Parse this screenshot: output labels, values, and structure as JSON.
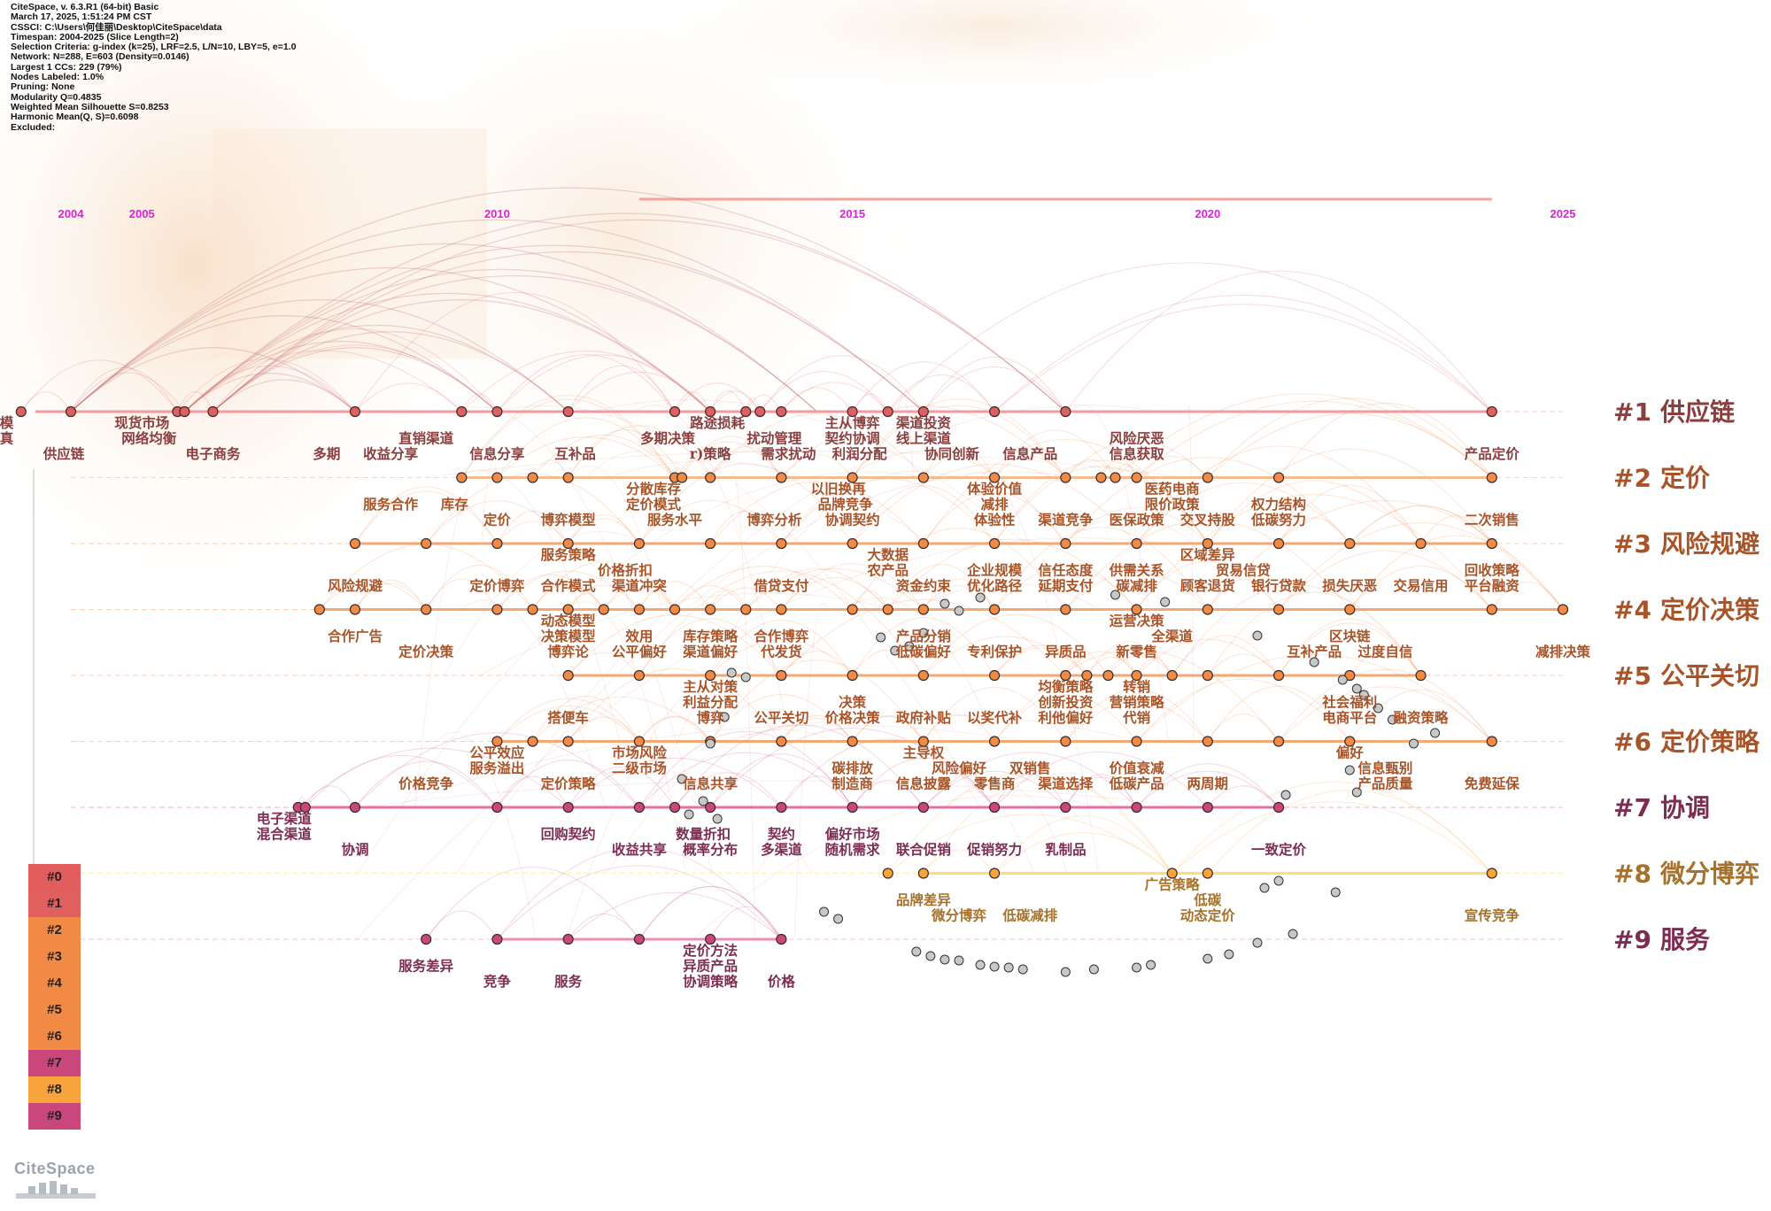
{
  "info_lines": [
    "CiteSpace, v. 6.3.R1 (64-bit) Basic",
    "March 17, 2025, 1:51:24 PM CST",
    "CSSCI: C:\\Users\\何佳丽\\Desktop\\CiteSpace\\data",
    "Timespan: 2004-2025 (Slice Length=2)",
    "Selection Criteria: g-index (k=25), LRF=2.5, L/N=10, LBY=5, e=1.0",
    "Network: N=288, E=603 (Density=0.0146)",
    "Largest 1 CCs: 229 (79%)",
    "Nodes Labeled: 1.0%",
    "Pruning: None",
    "Modularity Q=0.4835",
    "Weighted Mean Silhouette S=0.8253",
    "Harmonic Mean(Q, S)=0.6098",
    "Excluded:"
  ],
  "timeline": {
    "start_year": 2004,
    "end_year": 2025,
    "year_labels": [
      "2004",
      "2005",
      "2010",
      "2015",
      "2020",
      "2025"
    ]
  },
  "colors": {
    "year_label": "#e020e0",
    "top_bar": "#f4a39a",
    "unclustered_node": "#c8c8c8"
  },
  "clusters": [
    {
      "id": "#0",
      "name": "",
      "color": "#e25d5d",
      "label_color": "#8a3b3b",
      "line_color": null
    },
    {
      "id": "#1",
      "name": "供应链",
      "color": "#e06060",
      "label_color": "#8a3e3e",
      "line_color": "#f29aa0"
    },
    {
      "id": "#2",
      "name": "定价",
      "color": "#f08a44",
      "label_color": "#a85428",
      "line_color": "#f7b98e"
    },
    {
      "id": "#3",
      "name": "风险规避",
      "color": "#f08a44",
      "label_color": "#a85428",
      "line_color": "#f6a873"
    },
    {
      "id": "#4",
      "name": "定价决策",
      "color": "#f08a44",
      "label_color": "#a85428",
      "line_color": "#f6a873"
    },
    {
      "id": "#5",
      "name": "公平关切",
      "color": "#f08a44",
      "label_color": "#a85428",
      "line_color": "#f6a873"
    },
    {
      "id": "#6",
      "name": "定价策略",
      "color": "#f08a44",
      "label_color": "#a85428",
      "line_color": "#f6a873"
    },
    {
      "id": "#7",
      "name": "协调",
      "color": "#c9477a",
      "label_color": "#7e2d52",
      "line_color": "#e86ea6"
    },
    {
      "id": "#8",
      "name": "微分博弈",
      "color": "#f7a43c",
      "label_color": "#a5712b",
      "line_color": "#fbe07a"
    },
    {
      "id": "#9",
      "name": "服务",
      "color": "#c9477a",
      "label_color": "#7e2d52",
      "line_color": "#ee8cb4"
    }
  ],
  "tracks": [
    {
      "cluster": 1,
      "span": [
        2003.5,
        2024.0
      ],
      "nodes": [
        2003.3,
        2004.0,
        2005.5,
        2005.6,
        2006.0,
        2008.0,
        2009.5,
        2010.0,
        2011.0,
        2012.5,
        2013.0,
        2013.5,
        2013.7,
        2014.0,
        2015.0,
        2015.5,
        2016.0,
        2017.0,
        2018.0,
        2024.0
      ]
    },
    {
      "cluster": 2,
      "span": [
        2009.5,
        2024.0
      ],
      "nodes": [
        2009.5,
        2010.0,
        2010.5,
        2011.0,
        2012.5,
        2012.6,
        2013.0,
        2014.0,
        2015.0,
        2016.0,
        2017.0,
        2018.0,
        2018.5,
        2018.7,
        2019.0,
        2020.0,
        2021.0,
        2024.0
      ]
    },
    {
      "cluster": 3,
      "span": [
        2008.0,
        2024.0
      ],
      "nodes": [
        2008.0,
        2009.0,
        2010.0,
        2011.0,
        2012.0,
        2013.0,
        2014.0,
        2015.0,
        2016.0,
        2017.0,
        2018.0,
        2019.0,
        2020.0,
        2021.0,
        2022.0,
        2023.0,
        2024.0
      ]
    },
    {
      "cluster": 4,
      "span": [
        2007.5,
        2025.0
      ],
      "nodes": [
        2007.5,
        2008.0,
        2009.0,
        2010.0,
        2010.5,
        2011.0,
        2011.5,
        2012.0,
        2012.5,
        2013.0,
        2013.5,
        2014.0,
        2015.0,
        2015.5,
        2016.0,
        2017.0,
        2018.0,
        2019.0,
        2020.0,
        2021.0,
        2022.0,
        2024.0,
        2025.0
      ]
    },
    {
      "cluster": 5,
      "span": [
        2011.0,
        2023.0
      ],
      "nodes": [
        2011.0,
        2012.0,
        2013.0,
        2014.0,
        2015.0,
        2016.0,
        2017.0,
        2018.0,
        2018.3,
        2018.6,
        2019.0,
        2019.5,
        2020.0,
        2021.0,
        2022.0,
        2023.0
      ]
    },
    {
      "cluster": 6,
      "span": [
        2010.0,
        2024.0
      ],
      "nodes": [
        2010.0,
        2010.5,
        2011.0,
        2012.0,
        2013.0,
        2014.0,
        2015.0,
        2016.0,
        2017.0,
        2018.0,
        2019.0,
        2020.0,
        2021.0,
        2022.0,
        2024.0
      ]
    },
    {
      "cluster": 7,
      "span": [
        2007.2,
        2021.0
      ],
      "nodes": [
        2007.2,
        2007.3,
        2008.0,
        2010.0,
        2011.0,
        2012.0,
        2012.5,
        2013.0,
        2014.0,
        2015.0,
        2016.0,
        2017.0,
        2018.0,
        2019.0,
        2020.0,
        2021.0
      ]
    },
    {
      "cluster": 8,
      "span": [
        2016.0,
        2024.0
      ],
      "nodes": [
        2015.5,
        2016.0,
        2017.0,
        2019.5,
        2020.0,
        2024.0
      ]
    },
    {
      "cluster": 9,
      "span": [
        2010.0,
        2014.0
      ],
      "nodes": [
        2009.0,
        2010.0,
        2011.0,
        2012.0,
        2013.0,
        2014.0
      ]
    }
  ],
  "labels": [
    {
      "c": 1,
      "t": "建模",
      "yr": 2003.0,
      "row": 0
    },
    {
      "c": 1,
      "t": "仿真",
      "yr": 2003.0,
      "row": 1
    },
    {
      "c": 1,
      "t": "供应链",
      "yr": 2003.9,
      "row": 2
    },
    {
      "c": 1,
      "t": "现货市场",
      "yr": 2005.0,
      "row": 0
    },
    {
      "c": 1,
      "t": "网络均衡",
      "yr": 2005.1,
      "row": 1
    },
    {
      "c": 1,
      "t": "电子商务",
      "yr": 2006.0,
      "row": 2
    },
    {
      "c": 1,
      "t": "多期",
      "yr": 2007.6,
      "row": 2
    },
    {
      "c": 1,
      "t": "直销渠道",
      "yr": 2009.0,
      "row": 1
    },
    {
      "c": 1,
      "t": "收益分享",
      "yr": 2008.5,
      "row": 2
    },
    {
      "c": 1,
      "t": "信息分享",
      "yr": 2010.0,
      "row": 2
    },
    {
      "c": 1,
      "t": "互补品",
      "yr": 2011.1,
      "row": 2
    },
    {
      "c": 1,
      "t": "多期决策",
      "yr": 2012.4,
      "row": 1
    },
    {
      "c": 1,
      "t": "r)策略",
      "yr": 2013.0,
      "row": 2
    },
    {
      "c": 1,
      "t": "路途损耗",
      "yr": 2013.1,
      "row": 0
    },
    {
      "c": 1,
      "t": "扰动管理",
      "yr": 2013.9,
      "row": 1
    },
    {
      "c": 1,
      "t": "需求扰动",
      "yr": 2014.1,
      "row": 2
    },
    {
      "c": 1,
      "t": "主从博弈",
      "yr": 2015.0,
      "row": 0
    },
    {
      "c": 1,
      "t": "契约协调",
      "yr": 2015.0,
      "row": 1
    },
    {
      "c": 1,
      "t": "利润分配",
      "yr": 2015.1,
      "row": 2
    },
    {
      "c": 1,
      "t": "渠道投资",
      "yr": 2016.0,
      "row": 0
    },
    {
      "c": 1,
      "t": "线上渠道",
      "yr": 2016.0,
      "row": 1
    },
    {
      "c": 1,
      "t": "协同创新",
      "yr": 2016.4,
      "row": 2
    },
    {
      "c": 1,
      "t": "信息产品",
      "yr": 2017.5,
      "row": 2
    },
    {
      "c": 1,
      "t": "风险厌恶",
      "yr": 2019.0,
      "row": 1
    },
    {
      "c": 1,
      "t": "信息获取",
      "yr": 2019.0,
      "row": 2
    },
    {
      "c": 1,
      "t": "产品定价",
      "yr": 2024.0,
      "row": 2
    },
    {
      "c": 2,
      "t": "分散库存",
      "yr": 2012.2,
      "row": 0
    },
    {
      "c": 2,
      "t": "以旧换再",
      "yr": 2014.8,
      "row": 0
    },
    {
      "c": 2,
      "t": "体验价值",
      "yr": 2017.0,
      "row": 0
    },
    {
      "c": 2,
      "t": "医药电商",
      "yr": 2019.5,
      "row": 0
    },
    {
      "c": 2,
      "t": "服务合作",
      "yr": 2008.5,
      "row": 1
    },
    {
      "c": 2,
      "t": "库存",
      "yr": 2009.4,
      "row": 1
    },
    {
      "c": 2,
      "t": "定价模式",
      "yr": 2012.2,
      "row": 1
    },
    {
      "c": 2,
      "t": "品牌竞争",
      "yr": 2014.9,
      "row": 1
    },
    {
      "c": 2,
      "t": "减排",
      "yr": 2017.0,
      "row": 1
    },
    {
      "c": 2,
      "t": "限价政策",
      "yr": 2019.5,
      "row": 1
    },
    {
      "c": 2,
      "t": "权力结构",
      "yr": 2021.0,
      "row": 1
    },
    {
      "c": 2,
      "t": "定价",
      "yr": 2010.0,
      "row": 2
    },
    {
      "c": 2,
      "t": "博弈模型",
      "yr": 2011.0,
      "row": 2
    },
    {
      "c": 2,
      "t": "服务水平",
      "yr": 2012.5,
      "row": 2
    },
    {
      "c": 2,
      "t": "博弈分析",
      "yr": 2013.9,
      "row": 2
    },
    {
      "c": 2,
      "t": "协调契约",
      "yr": 2015.0,
      "row": 2
    },
    {
      "c": 2,
      "t": "体验性",
      "yr": 2017.0,
      "row": 2
    },
    {
      "c": 2,
      "t": "渠道竞争",
      "yr": 2018.0,
      "row": 2
    },
    {
      "c": 2,
      "t": "医保政策",
      "yr": 2019.0,
      "row": 2
    },
    {
      "c": 2,
      "t": "交叉持股",
      "yr": 2020.0,
      "row": 2
    },
    {
      "c": 2,
      "t": "低碳努力",
      "yr": 2021.0,
      "row": 2
    },
    {
      "c": 2,
      "t": "二次销售",
      "yr": 2024.0,
      "row": 2
    },
    {
      "c": 3,
      "t": "服务策略",
      "yr": 2011.0,
      "row": 0
    },
    {
      "c": 3,
      "t": "大数据",
      "yr": 2015.5,
      "row": 0
    },
    {
      "c": 3,
      "t": "区域差异",
      "yr": 2020.0,
      "row": 0
    },
    {
      "c": 3,
      "t": "价格折扣",
      "yr": 2011.8,
      "row": 1
    },
    {
      "c": 3,
      "t": "农产品",
      "yr": 2015.5,
      "row": 1
    },
    {
      "c": 3,
      "t": "企业规模",
      "yr": 2017.0,
      "row": 1
    },
    {
      "c": 3,
      "t": "信任态度",
      "yr": 2018.0,
      "row": 1
    },
    {
      "c": 3,
      "t": "供需关系",
      "yr": 2019.0,
      "row": 1
    },
    {
      "c": 3,
      "t": "贸易信贷",
      "yr": 2020.5,
      "row": 1
    },
    {
      "c": 3,
      "t": "回收策略",
      "yr": 2024.0,
      "row": 1
    },
    {
      "c": 3,
      "t": "风险规避",
      "yr": 2008.0,
      "row": 2
    },
    {
      "c": 3,
      "t": "定价博弈",
      "yr": 2010.0,
      "row": 2
    },
    {
      "c": 3,
      "t": "合作模式",
      "yr": 2011.0,
      "row": 2
    },
    {
      "c": 3,
      "t": "渠道冲突",
      "yr": 2012.0,
      "row": 2
    },
    {
      "c": 3,
      "t": "借贷支付",
      "yr": 2014.0,
      "row": 2
    },
    {
      "c": 3,
      "t": "资金约束",
      "yr": 2016.0,
      "row": 2
    },
    {
      "c": 3,
      "t": "优化路径",
      "yr": 2017.0,
      "row": 2
    },
    {
      "c": 3,
      "t": "延期支付",
      "yr": 2018.0,
      "row": 2
    },
    {
      "c": 3,
      "t": "碳减排",
      "yr": 2019.0,
      "row": 2
    },
    {
      "c": 3,
      "t": "顾客退货",
      "yr": 2020.0,
      "row": 2
    },
    {
      "c": 3,
      "t": "银行贷款",
      "yr": 2021.0,
      "row": 2
    },
    {
      "c": 3,
      "t": "损失厌恶",
      "yr": 2022.0,
      "row": 2
    },
    {
      "c": 3,
      "t": "交易信用",
      "yr": 2023.0,
      "row": 2
    },
    {
      "c": 3,
      "t": "平台融资",
      "yr": 2024.0,
      "row": 2
    },
    {
      "c": 4,
      "t": "动态模型",
      "yr": 2011.0,
      "row": 0
    },
    {
      "c": 4,
      "t": "运营决策",
      "yr": 2019.0,
      "row": 0
    },
    {
      "c": 4,
      "t": "合作广告",
      "yr": 2008.0,
      "row": 1
    },
    {
      "c": 4,
      "t": "决策模型",
      "yr": 2011.0,
      "row": 1
    },
    {
      "c": 4,
      "t": "效用",
      "yr": 2012.0,
      "row": 1
    },
    {
      "c": 4,
      "t": "库存策略",
      "yr": 2013.0,
      "row": 1
    },
    {
      "c": 4,
      "t": "合作博弈",
      "yr": 2014.0,
      "row": 1
    },
    {
      "c": 4,
      "t": "产品分销",
      "yr": 2016.0,
      "row": 1
    },
    {
      "c": 4,
      "t": "全渠道",
      "yr": 2019.5,
      "row": 1
    },
    {
      "c": 4,
      "t": "区块链",
      "yr": 2022.0,
      "row": 1
    },
    {
      "c": 4,
      "t": "定价决策",
      "yr": 2009.0,
      "row": 2
    },
    {
      "c": 4,
      "t": "博弈论",
      "yr": 2011.0,
      "row": 2
    },
    {
      "c": 4,
      "t": "公平偏好",
      "yr": 2012.0,
      "row": 2
    },
    {
      "c": 4,
      "t": "渠道偏好",
      "yr": 2013.0,
      "row": 2
    },
    {
      "c": 4,
      "t": "代发货",
      "yr": 2014.0,
      "row": 2
    },
    {
      "c": 4,
      "t": "低碳偏好",
      "yr": 2016.0,
      "row": 2
    },
    {
      "c": 4,
      "t": "专利保护",
      "yr": 2017.0,
      "row": 2
    },
    {
      "c": 4,
      "t": "异质品",
      "yr": 2018.0,
      "row": 2
    },
    {
      "c": 4,
      "t": "新零售",
      "yr": 2019.0,
      "row": 2
    },
    {
      "c": 4,
      "t": "互补产品",
      "yr": 2021.5,
      "row": 2
    },
    {
      "c": 4,
      "t": "过度自信",
      "yr": 2022.5,
      "row": 2
    },
    {
      "c": 4,
      "t": "减排决策",
      "yr": 2025.0,
      "row": 2
    },
    {
      "c": 5,
      "t": "主从对策",
      "yr": 2013.0,
      "row": 0
    },
    {
      "c": 5,
      "t": "均衡策略",
      "yr": 2018.0,
      "row": 0
    },
    {
      "c": 5,
      "t": "转销",
      "yr": 2019.0,
      "row": 0
    },
    {
      "c": 5,
      "t": "利益分配",
      "yr": 2013.0,
      "row": 1
    },
    {
      "c": 5,
      "t": "决策",
      "yr": 2015.0,
      "row": 1
    },
    {
      "c": 5,
      "t": "创新投资",
      "yr": 2018.0,
      "row": 1
    },
    {
      "c": 5,
      "t": "营销策略",
      "yr": 2019.0,
      "row": 1
    },
    {
      "c": 5,
      "t": "社会福利",
      "yr": 2022.0,
      "row": 1
    },
    {
      "c": 5,
      "t": "搭便车",
      "yr": 2011.0,
      "row": 2
    },
    {
      "c": 5,
      "t": "博弈",
      "yr": 2013.0,
      "row": 2
    },
    {
      "c": 5,
      "t": "公平关切",
      "yr": 2014.0,
      "row": 2
    },
    {
      "c": 5,
      "t": "价格决策",
      "yr": 2015.0,
      "row": 2
    },
    {
      "c": 5,
      "t": "政府补贴",
      "yr": 2016.0,
      "row": 2
    },
    {
      "c": 5,
      "t": "以奖代补",
      "yr": 2017.0,
      "row": 2
    },
    {
      "c": 5,
      "t": "利他偏好",
      "yr": 2018.0,
      "row": 2
    },
    {
      "c": 5,
      "t": "代销",
      "yr": 2019.0,
      "row": 2
    },
    {
      "c": 5,
      "t": "电商平台",
      "yr": 2022.0,
      "row": 2
    },
    {
      "c": 5,
      "t": "融资策略",
      "yr": 2023.0,
      "row": 2
    },
    {
      "c": 6,
      "t": "公平效应",
      "yr": 2010.0,
      "row": 0
    },
    {
      "c": 6,
      "t": "市场风险",
      "yr": 2012.0,
      "row": 0
    },
    {
      "c": 6,
      "t": "主导权",
      "yr": 2016.0,
      "row": 0
    },
    {
      "c": 6,
      "t": "偏好",
      "yr": 2022.0,
      "row": 0
    },
    {
      "c": 6,
      "t": "服务溢出",
      "yr": 2010.0,
      "row": 1
    },
    {
      "c": 6,
      "t": "二级市场",
      "yr": 2012.0,
      "row": 1
    },
    {
      "c": 6,
      "t": "碳排放",
      "yr": 2015.0,
      "row": 1
    },
    {
      "c": 6,
      "t": "风险偏好",
      "yr": 2016.5,
      "row": 1
    },
    {
      "c": 6,
      "t": "双销售",
      "yr": 2017.5,
      "row": 1
    },
    {
      "c": 6,
      "t": "价值衰减",
      "yr": 2019.0,
      "row": 1
    },
    {
      "c": 6,
      "t": "信息甄别",
      "yr": 2022.5,
      "row": 1
    },
    {
      "c": 6,
      "t": "价格竞争",
      "yr": 2009.0,
      "row": 2
    },
    {
      "c": 6,
      "t": "定价策略",
      "yr": 2011.0,
      "row": 2
    },
    {
      "c": 6,
      "t": "信息共享",
      "yr": 2013.0,
      "row": 2
    },
    {
      "c": 6,
      "t": "制造商",
      "yr": 2015.0,
      "row": 2
    },
    {
      "c": 6,
      "t": "信息披露",
      "yr": 2016.0,
      "row": 2
    },
    {
      "c": 6,
      "t": "零售商",
      "yr": 2017.0,
      "row": 2
    },
    {
      "c": 6,
      "t": "渠道选择",
      "yr": 2018.0,
      "row": 2
    },
    {
      "c": 6,
      "t": "低碳产品",
      "yr": 2019.0,
      "row": 2
    },
    {
      "c": 6,
      "t": "两周期",
      "yr": 2020.0,
      "row": 2
    },
    {
      "c": 6,
      "t": "产品质量",
      "yr": 2022.5,
      "row": 2
    },
    {
      "c": 6,
      "t": "免费延保",
      "yr": 2024.0,
      "row": 2
    },
    {
      "c": 7,
      "t": "电子渠道",
      "yr": 2007.0,
      "row": 0
    },
    {
      "c": 7,
      "t": "混合渠道",
      "yr": 2007.0,
      "row": 1
    },
    {
      "c": 7,
      "t": "协调",
      "yr": 2008.0,
      "row": 2
    },
    {
      "c": 7,
      "t": "回购契约",
      "yr": 2011.0,
      "row": 1
    },
    {
      "c": 7,
      "t": "收益共享",
      "yr": 2012.0,
      "row": 2
    },
    {
      "c": 7,
      "t": "数量折扣",
      "yr": 2012.9,
      "row": 1
    },
    {
      "c": 7,
      "t": "概率分布",
      "yr": 2013.0,
      "row": 2
    },
    {
      "c": 7,
      "t": "契约",
      "yr": 2014.0,
      "row": 1
    },
    {
      "c": 7,
      "t": "多渠道",
      "yr": 2014.0,
      "row": 2
    },
    {
      "c": 7,
      "t": "偏好市场",
      "yr": 2015.0,
      "row": 1
    },
    {
      "c": 7,
      "t": "随机需求",
      "yr": 2015.0,
      "row": 2
    },
    {
      "c": 7,
      "t": "联合促销",
      "yr": 2016.0,
      "row": 2
    },
    {
      "c": 7,
      "t": "促销努力",
      "yr": 2017.0,
      "row": 2
    },
    {
      "c": 7,
      "t": "乳制品",
      "yr": 2018.0,
      "row": 2
    },
    {
      "c": 7,
      "t": "一致定价",
      "yr": 2021.0,
      "row": 2
    },
    {
      "c": 8,
      "t": "广告策略",
      "yr": 2019.5,
      "row": 0
    },
    {
      "c": 8,
      "t": "品牌差异",
      "yr": 2016.0,
      "row": 1
    },
    {
      "c": 8,
      "t": "低碳",
      "yr": 2020.0,
      "row": 1
    },
    {
      "c": 8,
      "t": "微分博弈",
      "yr": 2016.5,
      "row": 2
    },
    {
      "c": 8,
      "t": "低碳减排",
      "yr": 2017.5,
      "row": 2
    },
    {
      "c": 8,
      "t": "动态定价",
      "yr": 2020.0,
      "row": 2
    },
    {
      "c": 8,
      "t": "宣传竞争",
      "yr": 2024.0,
      "row": 2
    },
    {
      "c": 9,
      "t": "定价方法",
      "yr": 2013.0,
      "row": 0
    },
    {
      "c": 9,
      "t": "服务差异",
      "yr": 2009.0,
      "row": 1
    },
    {
      "c": 9,
      "t": "异质产品",
      "yr": 2013.0,
      "row": 1
    },
    {
      "c": 9,
      "t": "竞争",
      "yr": 2010.0,
      "row": 2
    },
    {
      "c": 9,
      "t": "服务",
      "yr": 2011.0,
      "row": 2
    },
    {
      "c": 9,
      "t": "协调策略",
      "yr": 2013.0,
      "row": 2
    },
    {
      "c": 9,
      "t": "价格",
      "yr": 2014.0,
      "row": 2
    }
  ],
  "logo_text": "CiteSpace"
}
